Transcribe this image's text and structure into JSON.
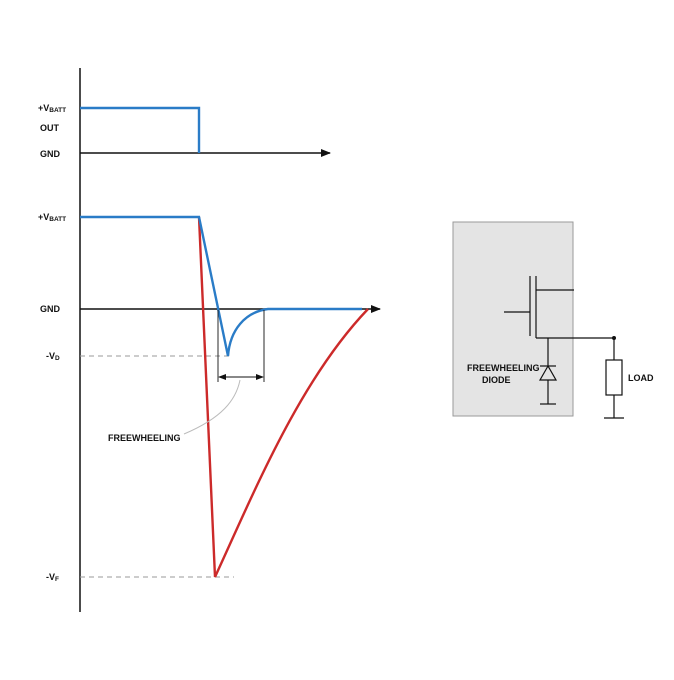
{
  "labels": {
    "vbatt_main": "+V",
    "vbatt_sub": "BATT",
    "out": "OUT",
    "gnd": "GND",
    "vd_main": "-V",
    "vd_sub": "D",
    "vf_main": "-V",
    "vf_sub": "F",
    "freewheeling": "FREEWHEELING",
    "diode_line1": "FREEWHEELING",
    "diode_line2": "DIODE",
    "load": "LOAD"
  },
  "colors": {
    "axis": "#111111",
    "blue_trace": "#2a7cc7",
    "red_trace": "#cc2a2a",
    "dashed": "#9a9a9a",
    "box_fill": "#e4e4e4",
    "box_stroke": "#9a9a9a",
    "circuit": "#111111"
  },
  "icons": {
    "diode": "diode-symbol",
    "load": "resistor-symbol",
    "ground": "ground-symbol",
    "arrow": "arrowhead"
  }
}
